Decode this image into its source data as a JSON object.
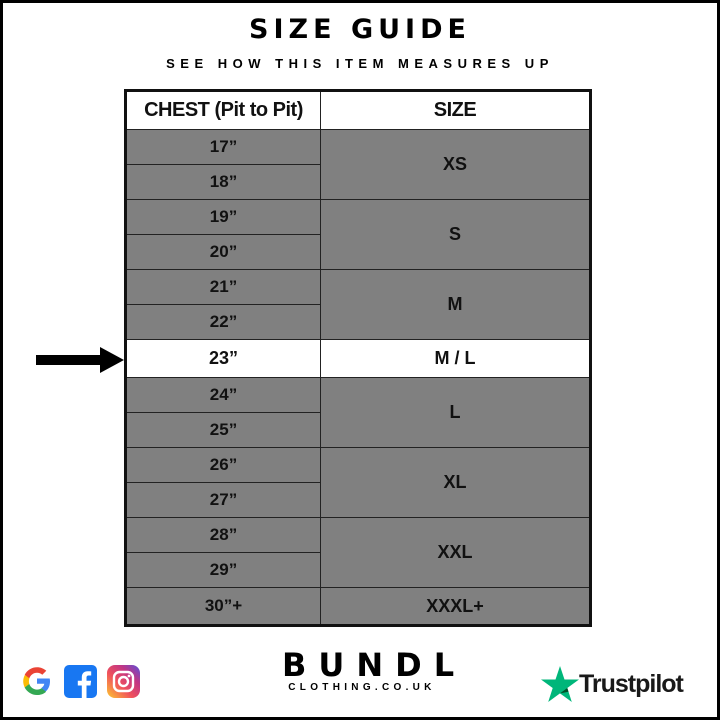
{
  "header": {
    "title": "SIZE GUIDE",
    "subtitle": "SEE HOW THIS ITEM MEASURES UP"
  },
  "table": {
    "columns": [
      "CHEST (Pit to Pit)",
      "SIZE"
    ],
    "rows": [
      {
        "chest": "17”",
        "size": "XS"
      },
      {
        "chest": "18”"
      },
      {
        "chest": "19”",
        "size": "S"
      },
      {
        "chest": "20”"
      },
      {
        "chest": "21”",
        "size": "M"
      },
      {
        "chest": "22”"
      },
      {
        "chest": "23”",
        "size": "M / L"
      },
      {
        "chest": "24”",
        "size": "L"
      },
      {
        "chest": "25”"
      },
      {
        "chest": "26”",
        "size": "XL"
      },
      {
        "chest": "27”"
      },
      {
        "chest": "28”",
        "size": "XXL"
      },
      {
        "chest": "29”"
      },
      {
        "chest": "30”+",
        "size": "XXXL+"
      }
    ],
    "highlighted_row": "23”",
    "colors": {
      "row_bg": "#808080",
      "highlight_bg": "#ffffff"
    }
  },
  "footer": {
    "social_icons": [
      "google-icon",
      "facebook-icon",
      "instagram-icon"
    ],
    "brand": "BUNDL",
    "brand_sub": "CLOTHING.CO.UK",
    "trustpilot": "Trustpilot",
    "trustpilot_color": "#00b67a"
  }
}
